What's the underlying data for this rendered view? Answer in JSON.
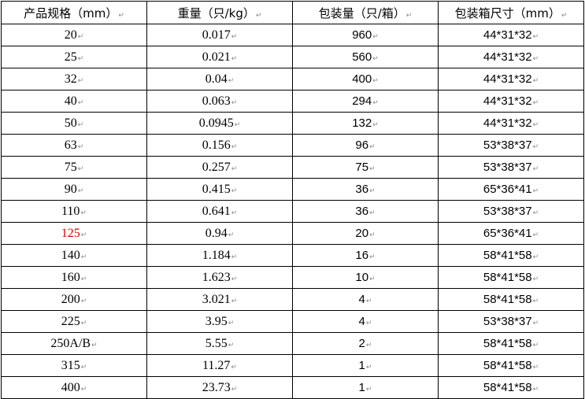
{
  "table": {
    "headers": [
      "产品规格（mm）",
      "重量（只/kg）",
      "包装量（只/箱）",
      "包装箱尺寸（mm）"
    ],
    "rows": [
      [
        "20",
        "0.017",
        "960",
        "44*31*32"
      ],
      [
        "25",
        "0.021",
        "560",
        "44*31*32"
      ],
      [
        "32",
        "0.04",
        "400",
        "44*31*32"
      ],
      [
        "40",
        "0.063",
        "294",
        "44*31*32"
      ],
      [
        "50",
        "0.0945",
        "132",
        "44*31*32"
      ],
      [
        "63",
        "0.156",
        "96",
        "53*38*37"
      ],
      [
        "75",
        "0.257",
        "75",
        "53*38*37"
      ],
      [
        "90",
        "0.415",
        "36",
        "65*36*41"
      ],
      [
        "110",
        "0.641",
        "36",
        "53*38*37"
      ],
      [
        "125",
        "0.94",
        "20",
        "65*36*41"
      ],
      [
        "140",
        "1.184",
        "16",
        "58*41*58"
      ],
      [
        "160",
        "1.623",
        "10",
        "58*41*58"
      ],
      [
        "200",
        "3.021",
        "4",
        "58*41*58"
      ],
      [
        "225",
        "3.95",
        "4",
        "53*38*37"
      ],
      [
        "250A/B",
        "5.55",
        "2",
        "58*41*58"
      ],
      [
        "315",
        "11.27",
        "1",
        "58*41*58"
      ],
      [
        "400",
        "23.73",
        "1",
        "58*41*58"
      ]
    ],
    "highlight_row": 9,
    "highlight_color": "#e00000"
  }
}
